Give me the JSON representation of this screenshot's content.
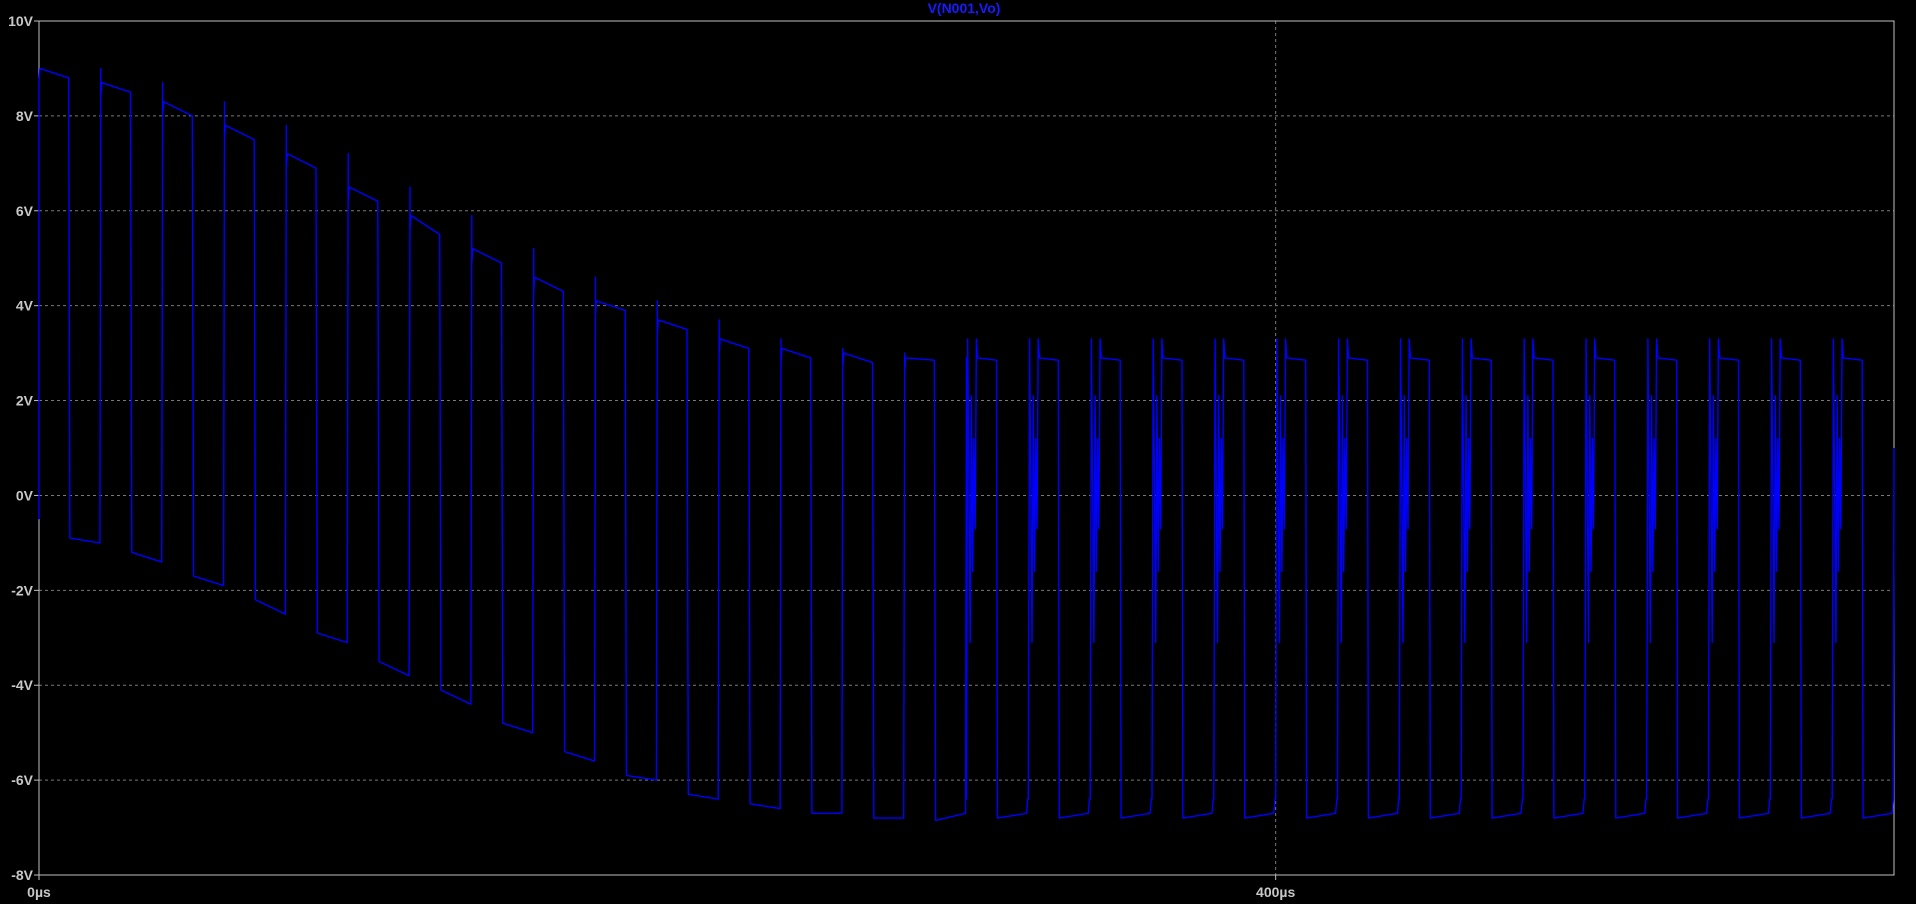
{
  "chart_data": {
    "type": "line",
    "title": "V(N001,Vo)",
    "xlabel": "",
    "ylabel": "",
    "xlim": [
      0,
      600
    ],
    "ylim": [
      -8,
      10
    ],
    "x_unit": "µs",
    "x_ticks": [
      {
        "value": 0,
        "label": "0µs"
      },
      {
        "value": 400,
        "label": "400µs"
      }
    ],
    "y_ticks": [
      {
        "value": 10,
        "label": "10V"
      },
      {
        "value": 8,
        "label": "8V"
      },
      {
        "value": 6,
        "label": "6V"
      },
      {
        "value": 4,
        "label": "4V"
      },
      {
        "value": 2,
        "label": "2V"
      },
      {
        "value": 0,
        "label": "0V"
      },
      {
        "value": -2,
        "label": "-2V"
      },
      {
        "value": -4,
        "label": "-4V"
      },
      {
        "value": -6,
        "label": "-6V"
      },
      {
        "value": -8,
        "label": "-8V"
      }
    ],
    "grid": true,
    "series": [
      {
        "name": "V(N001,Vo)",
        "color": "#0000ff",
        "waveform": {
          "period_us": 20,
          "high_duty": 0.5,
          "start_us": 0,
          "end_us": 600,
          "pulses": [
            {
              "t": 0,
              "high": [
                9.0,
                8.8
              ],
              "low": [
                -0.9,
                -1.0
              ]
            },
            {
              "t": 20,
              "high": [
                8.7,
                8.5
              ],
              "low": [
                -1.2,
                -1.4
              ]
            },
            {
              "t": 40,
              "high": [
                8.3,
                8.0
              ],
              "low": [
                -1.7,
                -1.9
              ]
            },
            {
              "t": 60,
              "high": [
                7.8,
                7.5
              ],
              "low": [
                -2.2,
                -2.5
              ]
            },
            {
              "t": 80,
              "high": [
                7.2,
                6.9
              ],
              "low": [
                -2.9,
                -3.1
              ]
            },
            {
              "t": 100,
              "high": [
                6.5,
                6.2
              ],
              "low": [
                -3.5,
                -3.8
              ]
            },
            {
              "t": 120,
              "high": [
                5.9,
                5.5
              ],
              "low": [
                -4.1,
                -4.4
              ]
            },
            {
              "t": 140,
              "high": [
                5.2,
                4.9
              ],
              "low": [
                -4.8,
                -5.0
              ]
            },
            {
              "t": 160,
              "high": [
                4.6,
                4.3
              ],
              "low": [
                -5.4,
                -5.6
              ]
            },
            {
              "t": 180,
              "high": [
                4.1,
                3.9
              ],
              "low": [
                -5.9,
                -6.0
              ]
            },
            {
              "t": 200,
              "high": [
                3.7,
                3.5
              ],
              "low": [
                -6.3,
                -6.4
              ]
            },
            {
              "t": 220,
              "high": [
                3.3,
                3.1
              ],
              "low": [
                -6.5,
                -6.6
              ]
            },
            {
              "t": 240,
              "high": [
                3.1,
                2.9
              ],
              "low": [
                -6.7,
                -6.7
              ]
            },
            {
              "t": 260,
              "high": [
                3.0,
                2.8
              ],
              "low": [
                -6.8,
                -6.8
              ]
            },
            {
              "t": 280,
              "high": [
                2.9,
                2.85
              ],
              "low": [
                -6.85,
                -6.7
              ]
            }
          ],
          "steady_state_from_us": 300,
          "steady_high": [
            2.9,
            2.85
          ],
          "steady_low": [
            -6.8,
            -6.8
          ],
          "ringing_amplitude": [
            3.3,
            -3.1
          ]
        }
      }
    ]
  }
}
